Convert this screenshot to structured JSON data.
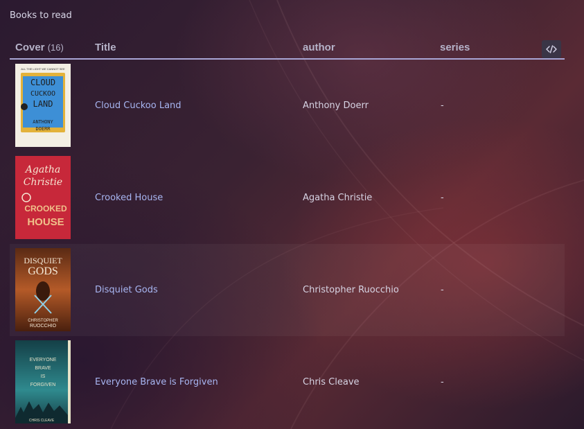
{
  "page": {
    "title": "Books to read"
  },
  "table": {
    "columns": {
      "cover": "Cover",
      "cover_count": "(16)",
      "title": "Title",
      "author": "author",
      "series": "series"
    },
    "rows": [
      {
        "title": "Cloud Cuckoo Land",
        "author": "Anthony Doerr",
        "series": "-",
        "cover_text": [
          "CLOUD",
          "CUCKOO",
          "LAND",
          "ANTHONY",
          "DOERR"
        ],
        "cover_top": "ALL THE LIGHT WE CANNOT SEE",
        "cover_colors": {
          "bg": "#f3efe4",
          "panel": "#3d8fd6",
          "accent": "#e3b23a"
        }
      },
      {
        "title": "Crooked House",
        "author": "Agatha Christie",
        "series": "-",
        "cover_text": [
          "Agatha",
          "Christie",
          "CROOKED",
          "HOUSE"
        ],
        "cover_colors": {
          "bg": "#c7283a",
          "panel": "#f0c08a",
          "accent": "#f6e6d2"
        }
      },
      {
        "title": "Disquiet Gods",
        "author": "Christopher Ruocchio",
        "series": "-",
        "cover_text": [
          "DISQUIET",
          "GODS",
          "CHRISTOPHER",
          "RUOCCHIO"
        ],
        "cover_colors": {
          "bg": "#7a3a1c",
          "panel": "#b45a28",
          "accent": "#8fd0e8"
        }
      },
      {
        "title": "Everyone Brave is Forgiven",
        "author": "Chris Cleave",
        "series": "-",
        "cover_text": [
          "EVERYONE",
          "BRAVE",
          "IS",
          "FORGIVEN",
          "CHRIS CLEAVE"
        ],
        "cover_colors": {
          "bg": "#1d5e66",
          "panel": "#2f8a8e",
          "accent": "#e6e2c8"
        }
      }
    ]
  }
}
